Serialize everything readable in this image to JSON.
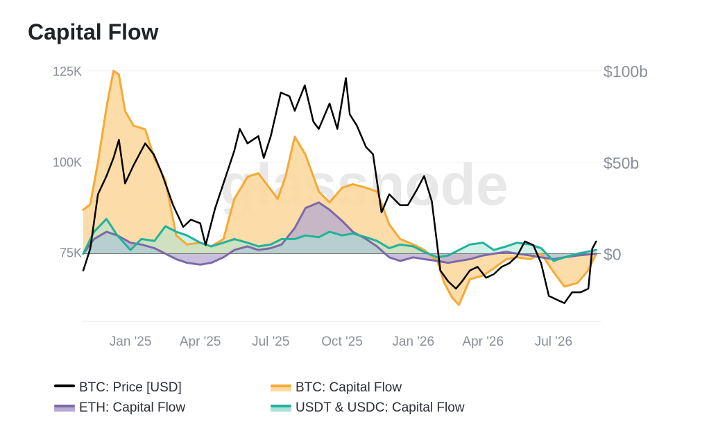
{
  "title": "Capital Flow",
  "watermark": "glassnode",
  "legend": {
    "btc_price": "BTC: Price [USD]",
    "btc_flow": "BTC: Capital Flow",
    "eth_flow": "ETH: Capital Flow",
    "stable_flow": "USDT & USDC: Capital Flow"
  },
  "colors": {
    "btc_price": "#000000",
    "btc_flow": "#f7a935",
    "btc_flow_fill": "#fcd9a0",
    "eth_flow": "#7b6aa8",
    "eth_flow_fill": "#b6aad0",
    "stable_flow": "#1fb39a",
    "stable_flow_fill": "#a9e3d6"
  },
  "chart_data": {
    "type": "line",
    "x_type": "date",
    "x_ticks": [
      "Jan '25",
      "Apr '25",
      "Jul '25",
      "Oct '25",
      "Jan '26",
      "Apr '26",
      "Jul '26"
    ],
    "x_tick_dates": [
      "2025-01-01",
      "2025-04-01",
      "2025-07-01",
      "2025-10-01",
      "2026-01-01",
      "2026-04-01",
      "2026-07-01"
    ],
    "x_range": [
      "2024-11-01",
      "2026-08-31"
    ],
    "y_left": {
      "ticks": [
        "75K",
        "100K",
        "125K"
      ],
      "tick_values": [
        75000,
        100000,
        125000
      ],
      "range": [
        56000,
        125000
      ]
    },
    "y_right": {
      "ticks": [
        "$0",
        "$50b",
        "$100b"
      ],
      "tick_values": [
        0,
        50,
        100
      ],
      "range": [
        -37,
        100
      ]
    },
    "grid": true,
    "legend_position": "bottom",
    "series": [
      {
        "key": "btc_price",
        "name": "BTC: Price [USD]",
        "axis": "left",
        "x": [
          "2024-11-01",
          "2024-11-10",
          "2024-11-20",
          "2024-12-01",
          "2024-12-10",
          "2024-12-17",
          "2024-12-25",
          "2025-01-05",
          "2025-01-20",
          "2025-01-31",
          "2025-02-10",
          "2025-02-25",
          "2025-03-10",
          "2025-03-20",
          "2025-04-01",
          "2025-04-08",
          "2025-04-20",
          "2025-05-01",
          "2025-05-15",
          "2025-05-22",
          "2025-06-01",
          "2025-06-15",
          "2025-06-22",
          "2025-07-01",
          "2025-07-14",
          "2025-07-25",
          "2025-08-01",
          "2025-08-14",
          "2025-08-25",
          "2025-09-01",
          "2025-09-15",
          "2025-09-25",
          "2025-10-06",
          "2025-10-11",
          "2025-10-20",
          "2025-11-01",
          "2025-11-10",
          "2025-11-21",
          "2025-12-01",
          "2025-12-15",
          "2025-12-25",
          "2026-01-05",
          "2026-01-15",
          "2026-01-25",
          "2026-02-05",
          "2026-02-15",
          "2026-02-25",
          "2026-03-05",
          "2026-03-15",
          "2026-03-25",
          "2026-04-05",
          "2026-04-15",
          "2026-04-25",
          "2026-05-05",
          "2026-05-15",
          "2026-05-25",
          "2026-06-05",
          "2026-06-15",
          "2026-06-25",
          "2026-07-05",
          "2026-07-15",
          "2026-07-25",
          "2026-08-05",
          "2026-08-15",
          "2026-08-20",
          "2026-08-25"
        ],
        "values": [
          70000,
          76000,
          91000,
          96000,
          101000,
          106000,
          94000,
          99000,
          105000,
          102000,
          97000,
          88000,
          82000,
          84000,
          83000,
          77000,
          87000,
          94000,
          103000,
          109000,
          105000,
          107000,
          101000,
          107000,
          119000,
          118000,
          114000,
          121000,
          111000,
          109000,
          116000,
          109000,
          123000,
          113000,
          110000,
          104000,
          102000,
          86000,
          91000,
          88000,
          88000,
          92000,
          96000,
          89000,
          70000,
          67000,
          65000,
          67000,
          70000,
          71000,
          68000,
          69000,
          71000,
          72000,
          74000,
          78000,
          77000,
          72000,
          63000,
          62000,
          61000,
          64000,
          64000,
          65000,
          76000,
          78000
        ]
      },
      {
        "key": "btc_flow",
        "name": "BTC: Capital Flow",
        "axis": "right",
        "x": [
          "2024-11-01",
          "2024-11-10",
          "2024-11-20",
          "2024-12-01",
          "2024-12-10",
          "2024-12-17",
          "2024-12-25",
          "2025-01-05",
          "2025-01-20",
          "2025-02-01",
          "2025-02-15",
          "2025-03-01",
          "2025-03-15",
          "2025-04-01",
          "2025-04-15",
          "2025-05-01",
          "2025-05-15",
          "2025-06-01",
          "2025-06-15",
          "2025-07-01",
          "2025-07-10",
          "2025-07-20",
          "2025-08-01",
          "2025-08-15",
          "2025-09-01",
          "2025-09-15",
          "2025-10-01",
          "2025-10-15",
          "2025-11-01",
          "2025-11-15",
          "2025-12-01",
          "2025-12-15",
          "2026-01-01",
          "2026-01-15",
          "2026-02-01",
          "2026-02-10",
          "2026-02-20",
          "2026-03-01",
          "2026-03-15",
          "2026-04-01",
          "2026-04-15",
          "2026-05-01",
          "2026-05-15",
          "2026-06-01",
          "2026-06-15",
          "2026-07-01",
          "2026-07-15",
          "2026-08-01",
          "2026-08-15",
          "2026-08-25"
        ],
        "values": [
          24,
          27,
          50,
          80,
          100,
          98,
          78,
          70,
          68,
          52,
          40,
          10,
          5,
          6,
          4,
          8,
          30,
          42,
          44,
          35,
          30,
          42,
          64,
          54,
          34,
          28,
          36,
          38,
          36,
          34,
          16,
          8,
          5,
          2,
          -4,
          -16,
          -24,
          -28,
          -14,
          -12,
          -8,
          -3,
          -2,
          -3,
          0,
          -10,
          -18,
          -16,
          -9,
          0
        ]
      },
      {
        "key": "eth_flow",
        "name": "ETH: Capital Flow",
        "axis": "right",
        "x": [
          "2024-11-01",
          "2024-11-15",
          "2024-12-01",
          "2024-12-15",
          "2025-01-01",
          "2025-01-15",
          "2025-02-01",
          "2025-02-15",
          "2025-03-01",
          "2025-03-15",
          "2025-04-01",
          "2025-04-15",
          "2025-05-01",
          "2025-05-15",
          "2025-06-01",
          "2025-06-15",
          "2025-07-01",
          "2025-07-15",
          "2025-08-01",
          "2025-08-15",
          "2025-09-01",
          "2025-09-15",
          "2025-10-01",
          "2025-10-15",
          "2025-11-01",
          "2025-11-15",
          "2025-12-01",
          "2025-12-15",
          "2026-01-01",
          "2026-01-15",
          "2026-02-01",
          "2026-02-15",
          "2026-03-01",
          "2026-03-15",
          "2026-04-01",
          "2026-04-15",
          "2026-05-01",
          "2026-05-15",
          "2026-06-01",
          "2026-06-15",
          "2026-07-01",
          "2026-07-15",
          "2026-08-01",
          "2026-08-25"
        ],
        "values": [
          0,
          8,
          12,
          10,
          6,
          5,
          3,
          0,
          -3,
          -5,
          -6,
          -5,
          -2,
          2,
          4,
          2,
          3,
          5,
          14,
          25,
          28,
          24,
          18,
          12,
          8,
          4,
          -2,
          -4,
          -2,
          -3,
          -4,
          -5,
          -4,
          -3,
          -1,
          0,
          1,
          0,
          -1,
          -2,
          -3,
          -2,
          -1,
          0
        ]
      },
      {
        "key": "stable_flow",
        "name": "USDT & USDC: Capital Flow",
        "axis": "right",
        "x": [
          "2024-11-01",
          "2024-11-15",
          "2024-12-01",
          "2024-12-15",
          "2025-01-01",
          "2025-01-15",
          "2025-02-01",
          "2025-02-15",
          "2025-03-01",
          "2025-03-15",
          "2025-04-01",
          "2025-04-15",
          "2025-05-01",
          "2025-05-15",
          "2025-06-01",
          "2025-06-15",
          "2025-07-01",
          "2025-07-15",
          "2025-08-01",
          "2025-08-15",
          "2025-09-01",
          "2025-09-15",
          "2025-10-01",
          "2025-10-15",
          "2025-11-01",
          "2025-11-15",
          "2025-12-01",
          "2025-12-15",
          "2026-01-01",
          "2026-01-15",
          "2026-02-01",
          "2026-02-15",
          "2026-03-01",
          "2026-03-15",
          "2026-04-01",
          "2026-04-15",
          "2026-05-01",
          "2026-05-15",
          "2026-06-01",
          "2026-06-15",
          "2026-07-01",
          "2026-07-15",
          "2026-08-01",
          "2026-08-25"
        ],
        "values": [
          0,
          12,
          19,
          10,
          2,
          8,
          7,
          15,
          12,
          10,
          6,
          4,
          6,
          8,
          6,
          4,
          5,
          8,
          8,
          10,
          9,
          12,
          10,
          11,
          9,
          7,
          3,
          5,
          4,
          1,
          -2,
          -1,
          2,
          5,
          6,
          2,
          4,
          6,
          5,
          3,
          -4,
          -2,
          0,
          2
        ]
      }
    ]
  }
}
